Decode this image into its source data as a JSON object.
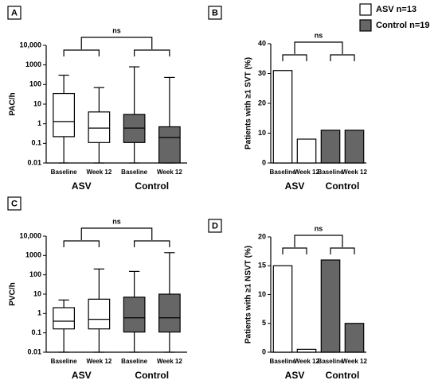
{
  "legend": [
    {
      "name": "ASV n=13",
      "color": "#ffffff"
    },
    {
      "name": "Control n=19",
      "color": "#666666"
    }
  ],
  "chart_data": [
    {
      "type": "box",
      "panel": "A",
      "ylabel": "PAC/h",
      "annotation": "ns",
      "ylog": true,
      "categories": [
        "Baseline",
        "Week 12",
        "Baseline",
        "Week 12"
      ],
      "groups": [
        "ASV",
        "Control"
      ],
      "colors": [
        "#ffffff",
        "#ffffff",
        "#666666",
        "#666666"
      ],
      "boxes": [
        {
          "min": 0.01,
          "q1": 0.22,
          "median": 1.3,
          "q3": 35,
          "max": 300
        },
        {
          "min": 0.01,
          "q1": 0.11,
          "median": 0.6,
          "q3": 4,
          "max": 70
        },
        {
          "min": 0.01,
          "q1": 0.11,
          "median": 0.6,
          "q3": 3,
          "max": 800
        },
        {
          "min": 0.01,
          "q1": 0.01,
          "median": 0.2,
          "q3": 0.7,
          "max": 230
        }
      ],
      "ylim": [
        0.01,
        10000
      ],
      "yticks": [
        0.01,
        0.1,
        1,
        10,
        100,
        1000,
        {
          "value": 10000,
          "label": "10,000"
        }
      ]
    },
    {
      "type": "bar",
      "panel": "B",
      "ylabel": "Patients with ≥1 SVT (%)",
      "annotation": "ns",
      "categories": [
        "Baseline",
        "Week 12",
        "Baseline",
        "Week 12"
      ],
      "groups": [
        "ASV",
        "Control"
      ],
      "colors": [
        "#ffffff",
        "#ffffff",
        "#666666",
        "#666666"
      ],
      "values": [
        31,
        8,
        11,
        11
      ],
      "ylim": [
        0,
        40
      ],
      "yticks": [
        0,
        10,
        20,
        30,
        40
      ]
    },
    {
      "type": "box",
      "panel": "C",
      "ylabel": "PVC/h",
      "annotation": "ns",
      "ylog": true,
      "categories": [
        "Baseline",
        "Week 12",
        "Baseline",
        "Week 12"
      ],
      "groups": [
        "ASV",
        "Control"
      ],
      "colors": [
        "#ffffff",
        "#ffffff",
        "#666666",
        "#666666"
      ],
      "boxes": [
        {
          "min": 0.01,
          "q1": 0.16,
          "median": 0.4,
          "q3": 2,
          "max": 5
        },
        {
          "min": 0.01,
          "q1": 0.16,
          "median": 0.5,
          "q3": 5.5,
          "max": 200
        },
        {
          "min": 0.01,
          "q1": 0.11,
          "median": 0.6,
          "q3": 7,
          "max": 150
        },
        {
          "min": 0.01,
          "q1": 0.11,
          "median": 0.6,
          "q3": 10,
          "max": 1400
        }
      ],
      "ylim": [
        0.01,
        10000
      ],
      "yticks": [
        0.01,
        0.1,
        1,
        10,
        100,
        1000,
        {
          "value": 10000,
          "label": "10,000"
        }
      ]
    },
    {
      "type": "bar",
      "panel": "D",
      "ylabel": "Patients with ≥1 NSVT (%)",
      "annotation": "ns",
      "categories": [
        "Baseline",
        "Week 12",
        "Baseline",
        "Week 12"
      ],
      "groups": [
        "ASV",
        "Control"
      ],
      "colors": [
        "#ffffff",
        "#ffffff",
        "#666666",
        "#666666"
      ],
      "values": [
        15,
        0.5,
        16,
        5
      ],
      "ylim": [
        0,
        20
      ],
      "yticks": [
        0,
        5,
        10,
        15,
        20
      ]
    }
  ]
}
